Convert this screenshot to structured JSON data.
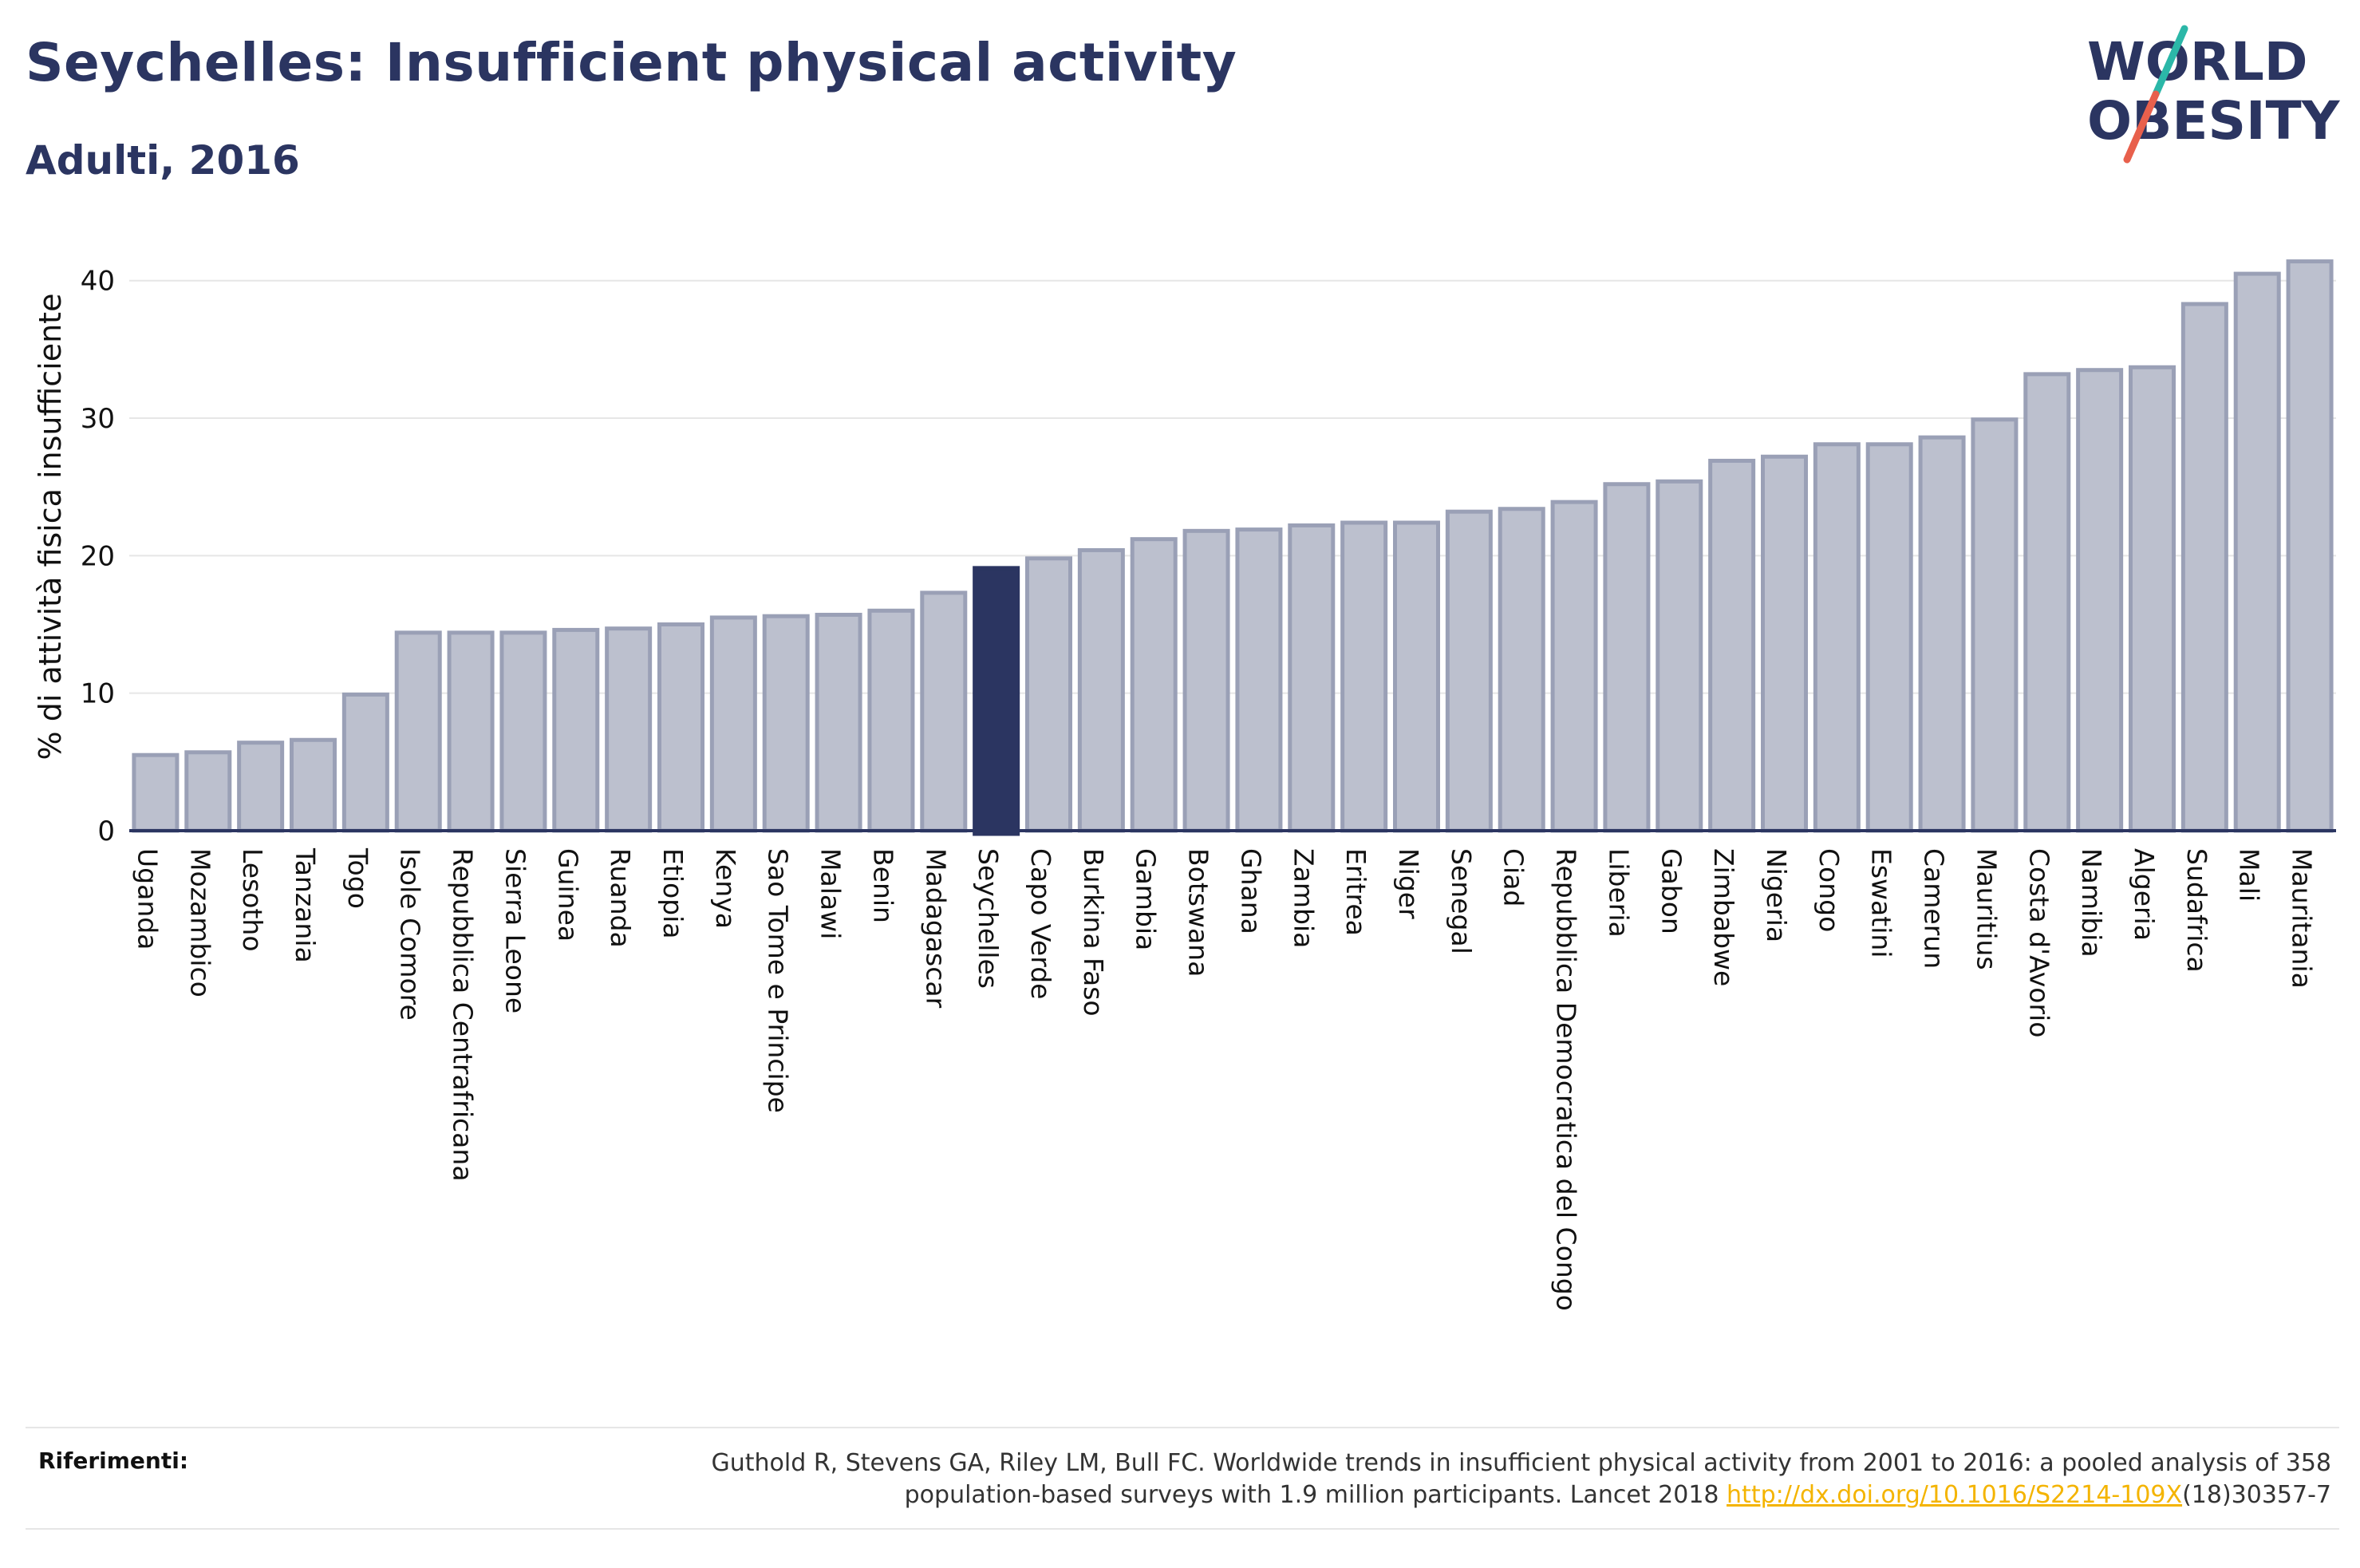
{
  "header": {
    "title": "Seychelles: Insufficient physical activity",
    "subtitle": "Adulti, 2016"
  },
  "logo": {
    "line1": "WORLD",
    "line2": "OBESITY",
    "colors": {
      "text": "#2b3561",
      "slash_teal": "#2bb7a8",
      "slash_red": "#e8604c"
    }
  },
  "colors": {
    "bar": "#bcc0ce",
    "bar_outline": "#9aa0b6",
    "highlight": "#2b3561",
    "axis": "#2b3561",
    "grid": "#e6e6e6"
  },
  "chart_data": {
    "type": "bar",
    "ylabel": "% di attività fisica insufficiente",
    "ylim": [
      0,
      43
    ],
    "yticks": [
      0,
      10,
      20,
      30,
      40
    ],
    "grid": true,
    "highlight": "Seychelles",
    "categories": [
      "Uganda",
      "Mozambico",
      "Lesotho",
      "Tanzania",
      "Togo",
      "Isole Comore",
      "Repubblica Centrafricana",
      "Sierra Leone",
      "Guinea",
      "Ruanda",
      "Etiopia",
      "Kenya",
      "Sao Tome e Principe",
      "Malawi",
      "Benin",
      "Madagascar",
      "Seychelles",
      "Capo Verde",
      "Burkina Faso",
      "Gambia",
      "Botswana",
      "Ghana",
      "Zambia",
      "Eritrea",
      "Niger",
      "Senegal",
      "Ciad",
      "Repubblica Democratica del Congo",
      "Liberia",
      "Gabon",
      "Zimbabwe",
      "Nigeria",
      "Congo",
      "Eswatini",
      "Camerun",
      "Mauritius",
      "Costa d'Avorio",
      "Namibia",
      "Algeria",
      "Sudafrica",
      "Mali",
      "Mauritania"
    ],
    "values": [
      5.5,
      5.7,
      6.4,
      6.6,
      9.9,
      14.4,
      14.4,
      14.4,
      14.6,
      14.7,
      15.0,
      15.5,
      15.6,
      15.7,
      16.0,
      17.3,
      19.1,
      19.8,
      20.4,
      21.2,
      21.8,
      21.9,
      22.2,
      22.4,
      22.4,
      23.2,
      23.4,
      23.9,
      25.2,
      25.4,
      26.9,
      27.2,
      28.1,
      28.1,
      28.6,
      29.9,
      33.2,
      33.5,
      33.7,
      38.3,
      40.5,
      41.4
    ]
  },
  "references": {
    "label": "Riferimenti:",
    "text_line1": "Guthold R, Stevens GA, Riley LM, Bull FC. Worldwide trends in insufficient physical activity from 2001 to 2016: a pooled analysis of 358",
    "text_line2_prefix": "population-based surveys with 1.9 million participants. Lancet 2018 ",
    "link": "http://dx.doi.org/10.1016/S2214-109X",
    "text_line2_suffix": "(18)30357-7"
  }
}
